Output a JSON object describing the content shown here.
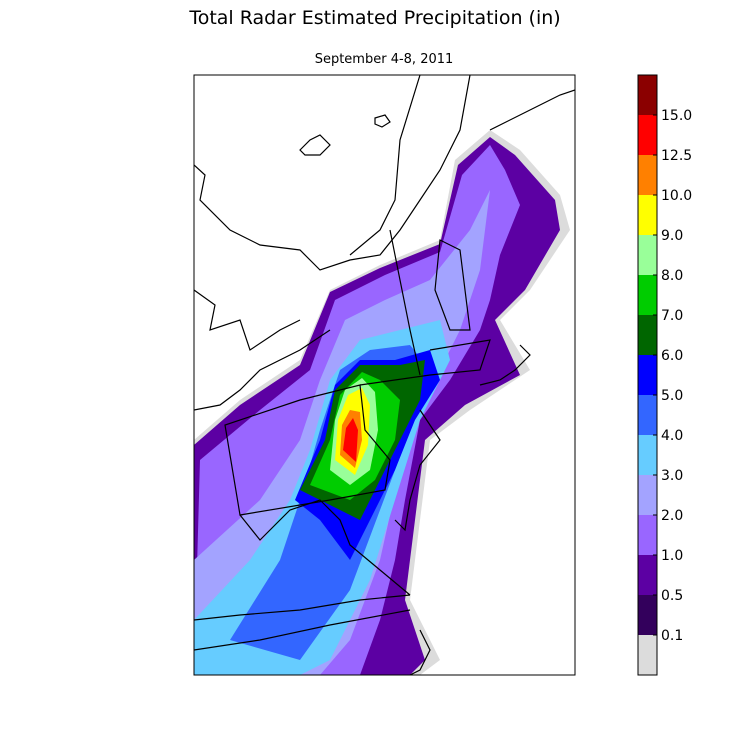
{
  "header": {
    "title": "Total Radar Estimated Precipitation (in)",
    "subtitle": "September 4-8, 2011"
  },
  "colorbar": {
    "labels": [
      "0.1",
      "0.5",
      "1.0",
      "2.0",
      "3.0",
      "4.0",
      "5.0",
      "6.0",
      "7.0",
      "8.0",
      "9.0",
      "10.0",
      "12.5",
      "15.0"
    ],
    "colors": [
      "#dcdcdc",
      "#33005c",
      "#5c00a3",
      "#9966ff",
      "#a3a3ff",
      "#66ccff",
      "#3366ff",
      "#0000ff",
      "#006600",
      "#00cc00",
      "#99ff99",
      "#ffff00",
      "#ff8000",
      "#ff0000",
      "#8b0000"
    ]
  }
}
